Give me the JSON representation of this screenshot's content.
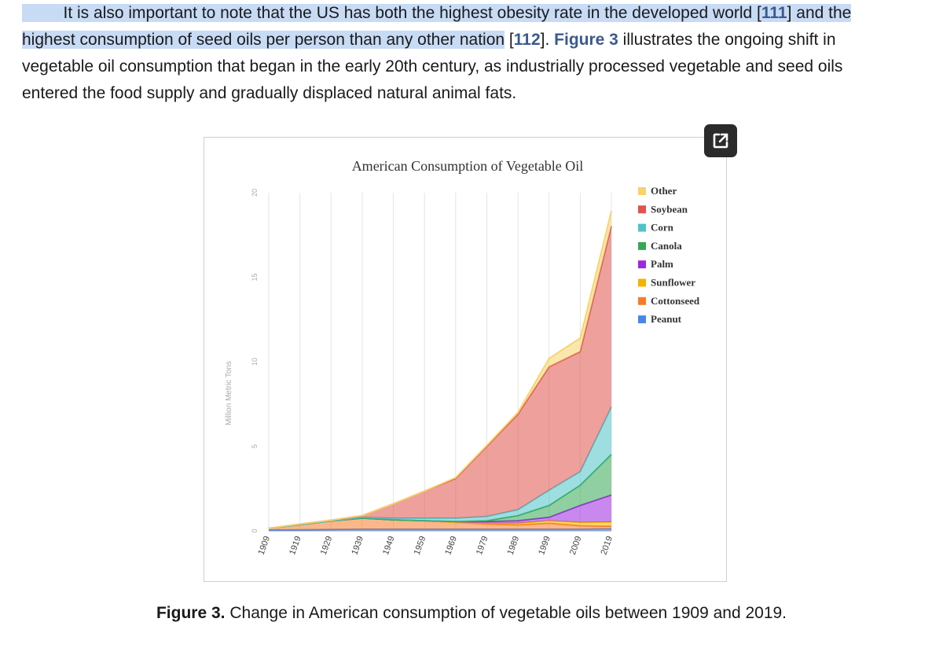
{
  "paragraph": {
    "line1_text": "It is also important to note that the US has both the highest obesity rate in the developed world [",
    "line1_ref": "111",
    "line1_end": "] and the",
    "line2_text": "highest consumption of seed oils per person than any other nation",
    "line2_ref_open": " [",
    "line2_ref": "112",
    "line2_ref_close": "]. ",
    "line2_figref": "Figure 3",
    "line2_end": " illustrates the ongoing shift in",
    "line3": "vegetable oil consumption that began in the early 20th century, as industrially processed vegetable and seed oils",
    "line4": "entered the food supply and gradually displaced natural animal fats."
  },
  "caption": {
    "label": "Figure 3.",
    "text": " Change in American consumption of vegetable oils between 1909 and 2019."
  },
  "expand_icon": "open-in-new-icon",
  "chart_data": {
    "type": "area",
    "stacked": true,
    "title": "American Consumption of Vegetable Oil",
    "xlabel": "",
    "ylabel": "Million Metric Tons",
    "ylim": [
      0,
      20
    ],
    "yticks": [
      "0",
      "5",
      "10",
      "15",
      "20"
    ],
    "x": [
      "1909",
      "1919",
      "1929",
      "1939",
      "1949",
      "1959",
      "1969",
      "1979",
      "1989",
      "1999",
      "2009",
      "2019"
    ],
    "legend_position": "right",
    "series": [
      {
        "name": "Peanut",
        "color": "#4a86e8",
        "values": [
          0.05,
          0.06,
          0.08,
          0.1,
          0.1,
          0.1,
          0.1,
          0.1,
          0.1,
          0.1,
          0.1,
          0.12
        ]
      },
      {
        "name": "Cottonseed",
        "color": "#f57c2a",
        "values": [
          0.1,
          0.3,
          0.5,
          0.65,
          0.55,
          0.5,
          0.4,
          0.3,
          0.25,
          0.35,
          0.2,
          0.15
        ]
      },
      {
        "name": "Sunflower",
        "color": "#f4b400",
        "values": [
          0,
          0,
          0,
          0,
          0,
          0,
          0,
          0.05,
          0.1,
          0.15,
          0.2,
          0.25
        ]
      },
      {
        "name": "Palm",
        "color": "#9c27e0",
        "values": [
          0,
          0,
          0,
          0,
          0,
          0,
          0.05,
          0.1,
          0.15,
          0.2,
          1.0,
          1.6
        ]
      },
      {
        "name": "Canola",
        "color": "#34a853",
        "values": [
          0,
          0,
          0,
          0,
          0,
          0,
          0,
          0.05,
          0.3,
          0.7,
          1.2,
          2.4
        ]
      },
      {
        "name": "Corn",
        "color": "#4fc3c9",
        "values": [
          0,
          0,
          0,
          0.05,
          0.1,
          0.15,
          0.2,
          0.25,
          0.35,
          0.9,
          0.8,
          2.8
        ]
      },
      {
        "name": "Soybean",
        "color": "#e0524b",
        "values": [
          0,
          0.04,
          0.05,
          0.1,
          0.85,
          1.6,
          2.35,
          4.15,
          5.65,
          7.3,
          7.1,
          10.7
        ]
      },
      {
        "name": "Other",
        "color": "#f6d36b",
        "values": [
          0,
          0,
          0,
          0,
          0,
          0,
          0.05,
          0.05,
          0.1,
          0.5,
          0.8,
          0.9
        ]
      }
    ]
  }
}
